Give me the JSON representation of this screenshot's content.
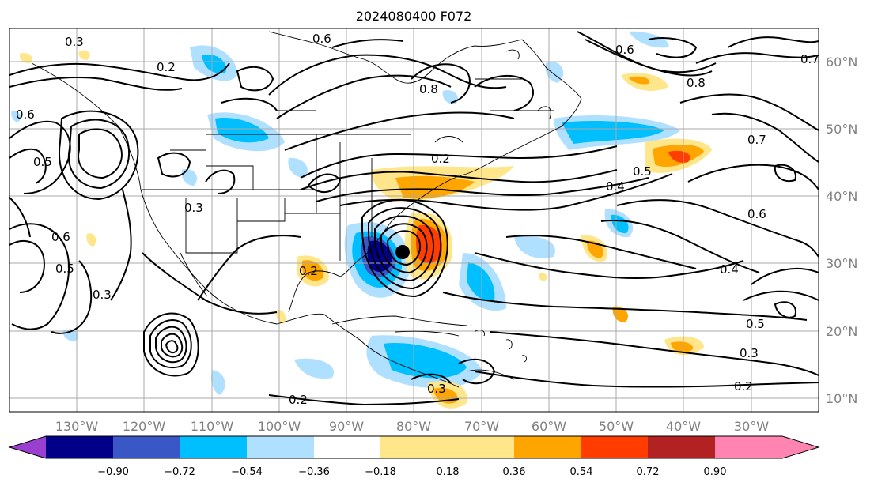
{
  "title": "2024080400 F072",
  "map": {
    "lon_ticks": [
      "130°W",
      "120°W",
      "110°W",
      "100°W",
      "90°W",
      "80°W",
      "70°W",
      "60°W",
      "50°W",
      "40°W",
      "30°W"
    ],
    "lat_ticks": [
      "60°N",
      "50°N",
      "40°N",
      "30°N",
      "20°N",
      "10°N"
    ],
    "contour_labels": [
      "0.6",
      "0.3",
      "0.2",
      "0.8",
      "0.6",
      "0.2",
      "0.5",
      "0.4",
      "0.5",
      "0.7",
      "0.6",
      "0.6",
      "0.5",
      "0.3",
      "0.3",
      "0.2",
      "0.4",
      "0.5",
      "0.3",
      "0.2",
      "0.3",
      "0.2",
      "0.8",
      "0.7",
      "0.6"
    ],
    "storm_center": "cyclone-center-marker"
  },
  "colorbar": {
    "ticks": [
      "−0.90",
      "−0.72",
      "−0.54",
      "−0.36",
      "−0.18",
      "0.18",
      "0.36",
      "0.54",
      "0.72",
      "0.90"
    ],
    "colors": [
      "#9a3fd0",
      "#000088",
      "#3a57c8",
      "#00bfff",
      "#b0e0ff",
      "#ffffff",
      "#ffe68a",
      "#ffa500",
      "#ff3d00",
      "#b22222",
      "#ff85b0"
    ]
  }
}
